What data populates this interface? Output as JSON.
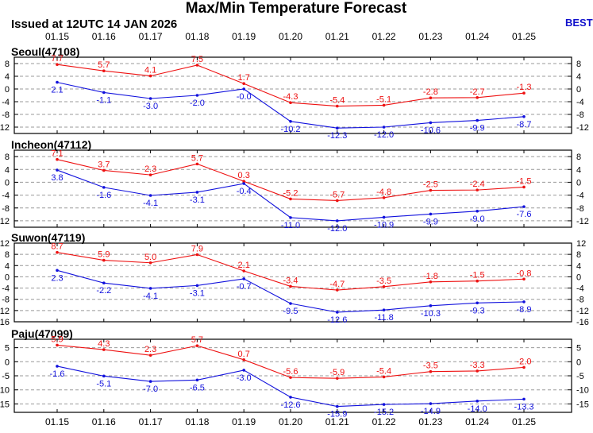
{
  "title": "Max/Min Temperature Forecast",
  "issued": "Issued at 12UTC 14 JAN 2026",
  "badge": "BEST",
  "colors": {
    "max": "#ee1111",
    "min": "#1111dd",
    "badge": "#1111cc",
    "grid": "#999999"
  },
  "chart_data": [
    {
      "type": "line",
      "station": "Seoul(47108)",
      "categories": [
        "01.15",
        "01.16",
        "01.17",
        "01.18",
        "01.19",
        "01.20",
        "01.21",
        "01.22",
        "01.23",
        "01.24",
        "01.25"
      ],
      "ylim": [
        -14,
        10
      ],
      "yticks": [
        8,
        4,
        0,
        -4,
        -8,
        -12
      ],
      "grid": true,
      "series": [
        {
          "key": "max",
          "values": [
            7.7,
            5.7,
            4.1,
            7.5,
            1.7,
            -4.3,
            -5.4,
            -5.1,
            -2.8,
            -2.7,
            -1.3
          ]
        },
        {
          "key": "min",
          "values": [
            2.1,
            -1.1,
            -3.0,
            -2.0,
            -0.0,
            -10.2,
            -12.3,
            -12.0,
            -10.6,
            -9.9,
            -8.7
          ]
        }
      ]
    },
    {
      "type": "line",
      "station": "Incheon(47112)",
      "categories": [
        "01.15",
        "01.16",
        "01.17",
        "01.18",
        "01.19",
        "01.20",
        "01.21",
        "01.22",
        "01.23",
        "01.24",
        "01.25"
      ],
      "ylim": [
        -14,
        10
      ],
      "yticks": [
        8,
        4,
        0,
        -4,
        -8,
        -12
      ],
      "grid": true,
      "series": [
        {
          "key": "max",
          "values": [
            7.1,
            3.7,
            2.3,
            5.7,
            0.3,
            -5.2,
            -5.7,
            -4.8,
            -2.5,
            -2.4,
            -1.5
          ]
        },
        {
          "key": "min",
          "values": [
            3.8,
            -1.6,
            -4.1,
            -3.1,
            -0.4,
            -11.0,
            -12.0,
            -10.9,
            -9.9,
            -9.0,
            -7.6
          ]
        }
      ]
    },
    {
      "type": "line",
      "station": "Suwon(47119)",
      "categories": [
        "01.15",
        "01.16",
        "01.17",
        "01.18",
        "01.19",
        "01.20",
        "01.21",
        "01.22",
        "01.23",
        "01.24",
        "01.25"
      ],
      "ylim": [
        -16,
        12
      ],
      "yticks": [
        12,
        8,
        4,
        0,
        -4,
        -8,
        -12,
        -16
      ],
      "grid": true,
      "series": [
        {
          "key": "max",
          "values": [
            8.7,
            5.9,
            5.0,
            7.9,
            2.1,
            -3.4,
            -4.7,
            -3.5,
            -1.8,
            -1.5,
            -0.8
          ]
        },
        {
          "key": "min",
          "values": [
            2.3,
            -2.2,
            -4.1,
            -3.1,
            -0.7,
            -9.5,
            -12.6,
            -11.8,
            -10.3,
            -9.3,
            -8.9
          ]
        }
      ]
    },
    {
      "type": "line",
      "station": "Paju(47099)",
      "categories": [
        "01.15",
        "01.16",
        "01.17",
        "01.18",
        "01.19",
        "01.20",
        "01.21",
        "01.22",
        "01.23",
        "01.24",
        "01.25"
      ],
      "ylim": [
        -18,
        8
      ],
      "yticks": [
        5,
        0,
        -5,
        -10,
        -15
      ],
      "grid": true,
      "series": [
        {
          "key": "max",
          "values": [
            5.9,
            4.3,
            2.3,
            5.7,
            0.7,
            -5.6,
            -5.9,
            -5.4,
            -3.5,
            -3.3,
            -2.0
          ]
        },
        {
          "key": "min",
          "values": [
            -1.6,
            -5.1,
            -7.0,
            -6.5,
            -3.0,
            -12.6,
            -15.9,
            -15.2,
            -14.9,
            -14.0,
            -13.3
          ]
        }
      ]
    }
  ]
}
